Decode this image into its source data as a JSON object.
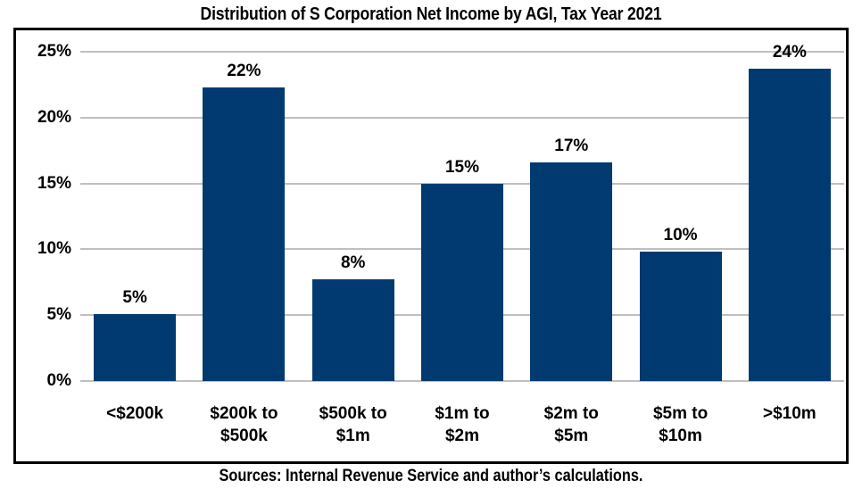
{
  "title": "Distribution of S Corporation Net Income by AGI, Tax Year 2021",
  "source_note": "Sources: Internal Revenue Service and author’s calculations.",
  "colors": {
    "bar": "#003a70",
    "gridline": "#bfbfbf",
    "frame_border": "#000000",
    "text": "#000000",
    "background": "#ffffff"
  },
  "chart_data": {
    "type": "bar",
    "title": "Distribution of S Corporation Net Income by AGI, Tax Year 2021",
    "categories": [
      "<$200k",
      "$200k to $500k",
      "$500k to $1m",
      "$1m to $2m",
      "$2m to $5m",
      "$5m to $10m",
      ">$10m"
    ],
    "category_lines": [
      [
        "<$200k"
      ],
      [
        "$200k to",
        "$500k"
      ],
      [
        "$500k to",
        "$1m"
      ],
      [
        "$1m to",
        "$2m"
      ],
      [
        "$2m to",
        "$5m"
      ],
      [
        "$5m to",
        "$10m"
      ],
      [
        ">$10m"
      ]
    ],
    "values": [
      5.1,
      22.3,
      7.7,
      15.0,
      16.6,
      9.8,
      23.7
    ],
    "value_labels": [
      "5%",
      "22%",
      "8%",
      "15%",
      "17%",
      "10%",
      "24%"
    ],
    "xlabel": "",
    "ylabel": "",
    "ylim": [
      0,
      25
    ],
    "y_ticks": [
      0,
      5,
      10,
      15,
      20,
      25
    ],
    "y_tick_labels": [
      "0%",
      "5%",
      "10%",
      "15%",
      "20%",
      "25%"
    ],
    "grid": true,
    "legend": false,
    "source": "Sources: Internal Revenue Service and author’s calculations."
  }
}
